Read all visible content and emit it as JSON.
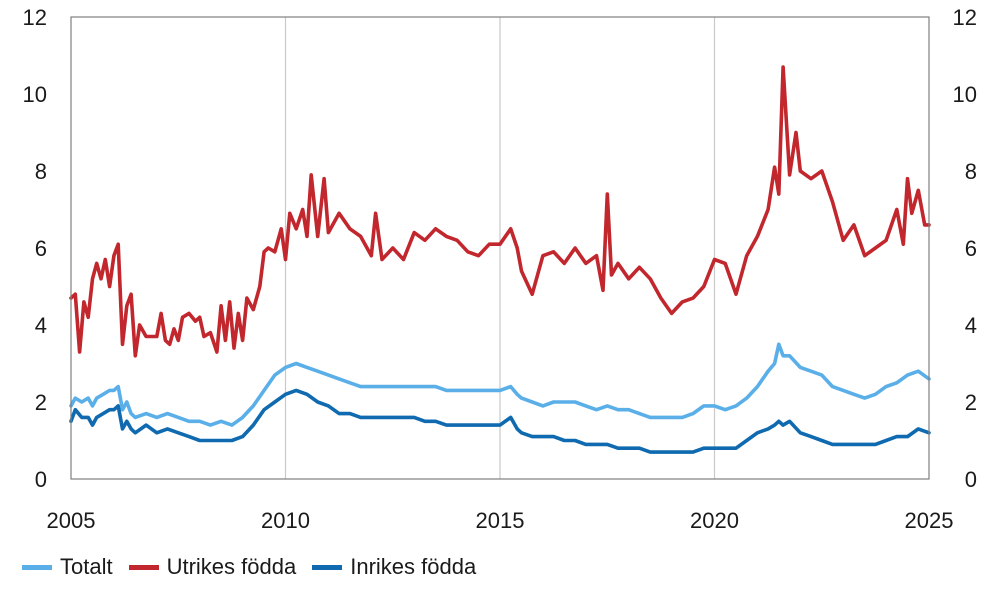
{
  "chart_data": {
    "type": "line",
    "xlim": [
      2005,
      2025
    ],
    "ylim": [
      0,
      12
    ],
    "x_ticks": [
      "2005",
      "2010",
      "2015",
      "2020",
      "2025"
    ],
    "y_ticks_left": [
      "0",
      "2",
      "4",
      "6",
      "8",
      "10",
      "12"
    ],
    "y_ticks_right": [
      "0",
      "2",
      "4",
      "6",
      "8",
      "10",
      "12"
    ],
    "grid": "vertical",
    "legend_position": "bottom",
    "series": [
      {
        "name": "Totalt",
        "color": "#5aafe8",
        "points": [
          [
            2005.0,
            1.9
          ],
          [
            2005.1,
            2.1
          ],
          [
            2005.25,
            2.0
          ],
          [
            2005.4,
            2.1
          ],
          [
            2005.5,
            1.9
          ],
          [
            2005.6,
            2.1
          ],
          [
            2005.75,
            2.2
          ],
          [
            2005.9,
            2.3
          ],
          [
            2006.0,
            2.3
          ],
          [
            2006.1,
            2.4
          ],
          [
            2006.2,
            1.8
          ],
          [
            2006.3,
            2.0
          ],
          [
            2006.4,
            1.7
          ],
          [
            2006.5,
            1.6
          ],
          [
            2006.75,
            1.7
          ],
          [
            2007.0,
            1.6
          ],
          [
            2007.25,
            1.7
          ],
          [
            2007.5,
            1.6
          ],
          [
            2007.75,
            1.5
          ],
          [
            2008.0,
            1.5
          ],
          [
            2008.25,
            1.4
          ],
          [
            2008.5,
            1.5
          ],
          [
            2008.75,
            1.4
          ],
          [
            2009.0,
            1.6
          ],
          [
            2009.25,
            1.9
          ],
          [
            2009.5,
            2.3
          ],
          [
            2009.75,
            2.7
          ],
          [
            2010.0,
            2.9
          ],
          [
            2010.25,
            3.0
          ],
          [
            2010.5,
            2.9
          ],
          [
            2010.75,
            2.8
          ],
          [
            2011.0,
            2.7
          ],
          [
            2011.25,
            2.6
          ],
          [
            2011.5,
            2.5
          ],
          [
            2011.75,
            2.4
          ],
          [
            2012.0,
            2.4
          ],
          [
            2012.25,
            2.4
          ],
          [
            2012.5,
            2.4
          ],
          [
            2012.75,
            2.4
          ],
          [
            2013.0,
            2.4
          ],
          [
            2013.25,
            2.4
          ],
          [
            2013.5,
            2.4
          ],
          [
            2013.75,
            2.3
          ],
          [
            2014.0,
            2.3
          ],
          [
            2014.25,
            2.3
          ],
          [
            2014.5,
            2.3
          ],
          [
            2014.75,
            2.3
          ],
          [
            2015.0,
            2.3
          ],
          [
            2015.25,
            2.4
          ],
          [
            2015.4,
            2.2
          ],
          [
            2015.5,
            2.1
          ],
          [
            2015.75,
            2.0
          ],
          [
            2016.0,
            1.9
          ],
          [
            2016.25,
            2.0
          ],
          [
            2016.5,
            2.0
          ],
          [
            2016.75,
            2.0
          ],
          [
            2017.0,
            1.9
          ],
          [
            2017.25,
            1.8
          ],
          [
            2017.5,
            1.9
          ],
          [
            2017.75,
            1.8
          ],
          [
            2018.0,
            1.8
          ],
          [
            2018.25,
            1.7
          ],
          [
            2018.5,
            1.6
          ],
          [
            2018.75,
            1.6
          ],
          [
            2019.0,
            1.6
          ],
          [
            2019.25,
            1.6
          ],
          [
            2019.5,
            1.7
          ],
          [
            2019.75,
            1.9
          ],
          [
            2020.0,
            1.9
          ],
          [
            2020.25,
            1.8
          ],
          [
            2020.5,
            1.9
          ],
          [
            2020.75,
            2.1
          ],
          [
            2021.0,
            2.4
          ],
          [
            2021.25,
            2.8
          ],
          [
            2021.4,
            3.0
          ],
          [
            2021.5,
            3.5
          ],
          [
            2021.6,
            3.2
          ],
          [
            2021.75,
            3.2
          ],
          [
            2022.0,
            2.9
          ],
          [
            2022.25,
            2.8
          ],
          [
            2022.5,
            2.7
          ],
          [
            2022.75,
            2.4
          ],
          [
            2023.0,
            2.3
          ],
          [
            2023.25,
            2.2
          ],
          [
            2023.5,
            2.1
          ],
          [
            2023.75,
            2.2
          ],
          [
            2024.0,
            2.4
          ],
          [
            2024.25,
            2.5
          ],
          [
            2024.5,
            2.7
          ],
          [
            2024.75,
            2.8
          ],
          [
            2025.0,
            2.6
          ]
        ]
      },
      {
        "name": "Utrikes födda",
        "color": "#c1272d",
        "points": [
          [
            2005.0,
            4.7
          ],
          [
            2005.1,
            4.8
          ],
          [
            2005.2,
            3.3
          ],
          [
            2005.3,
            4.6
          ],
          [
            2005.4,
            4.2
          ],
          [
            2005.5,
            5.2
          ],
          [
            2005.6,
            5.6
          ],
          [
            2005.7,
            5.2
          ],
          [
            2005.8,
            5.7
          ],
          [
            2005.9,
            5.0
          ],
          [
            2006.0,
            5.8
          ],
          [
            2006.1,
            6.1
          ],
          [
            2006.2,
            3.5
          ],
          [
            2006.3,
            4.5
          ],
          [
            2006.4,
            4.8
          ],
          [
            2006.5,
            3.2
          ],
          [
            2006.6,
            4.0
          ],
          [
            2006.75,
            3.7
          ],
          [
            2007.0,
            3.7
          ],
          [
            2007.1,
            4.3
          ],
          [
            2007.2,
            3.6
          ],
          [
            2007.3,
            3.5
          ],
          [
            2007.4,
            3.9
          ],
          [
            2007.5,
            3.6
          ],
          [
            2007.6,
            4.2
          ],
          [
            2007.75,
            4.3
          ],
          [
            2007.9,
            4.1
          ],
          [
            2008.0,
            4.2
          ],
          [
            2008.1,
            3.7
          ],
          [
            2008.25,
            3.8
          ],
          [
            2008.4,
            3.3
          ],
          [
            2008.5,
            4.5
          ],
          [
            2008.6,
            3.6
          ],
          [
            2008.7,
            4.6
          ],
          [
            2008.8,
            3.4
          ],
          [
            2008.9,
            4.3
          ],
          [
            2009.0,
            3.6
          ],
          [
            2009.1,
            4.7
          ],
          [
            2009.25,
            4.4
          ],
          [
            2009.4,
            5.0
          ],
          [
            2009.5,
            5.9
          ],
          [
            2009.6,
            6.0
          ],
          [
            2009.75,
            5.9
          ],
          [
            2009.9,
            6.5
          ],
          [
            2010.0,
            5.7
          ],
          [
            2010.1,
            6.9
          ],
          [
            2010.25,
            6.5
          ],
          [
            2010.4,
            7.0
          ],
          [
            2010.5,
            6.3
          ],
          [
            2010.6,
            7.9
          ],
          [
            2010.75,
            6.3
          ],
          [
            2010.9,
            7.8
          ],
          [
            2011.0,
            6.4
          ],
          [
            2011.25,
            6.9
          ],
          [
            2011.5,
            6.5
          ],
          [
            2011.75,
            6.3
          ],
          [
            2012.0,
            5.8
          ],
          [
            2012.1,
            6.9
          ],
          [
            2012.25,
            5.7
          ],
          [
            2012.5,
            6.0
          ],
          [
            2012.75,
            5.7
          ],
          [
            2013.0,
            6.4
          ],
          [
            2013.25,
            6.2
          ],
          [
            2013.5,
            6.5
          ],
          [
            2013.75,
            6.3
          ],
          [
            2014.0,
            6.2
          ],
          [
            2014.25,
            5.9
          ],
          [
            2014.5,
            5.8
          ],
          [
            2014.75,
            6.1
          ],
          [
            2015.0,
            6.1
          ],
          [
            2015.25,
            6.5
          ],
          [
            2015.4,
            6.0
          ],
          [
            2015.5,
            5.4
          ],
          [
            2015.75,
            4.8
          ],
          [
            2016.0,
            5.8
          ],
          [
            2016.25,
            5.9
          ],
          [
            2016.5,
            5.6
          ],
          [
            2016.75,
            6.0
          ],
          [
            2017.0,
            5.6
          ],
          [
            2017.25,
            5.8
          ],
          [
            2017.4,
            4.9
          ],
          [
            2017.5,
            7.4
          ],
          [
            2017.6,
            5.3
          ],
          [
            2017.75,
            5.6
          ],
          [
            2018.0,
            5.2
          ],
          [
            2018.25,
            5.5
          ],
          [
            2018.5,
            5.2
          ],
          [
            2018.75,
            4.7
          ],
          [
            2019.0,
            4.3
          ],
          [
            2019.25,
            4.6
          ],
          [
            2019.5,
            4.7
          ],
          [
            2019.75,
            5.0
          ],
          [
            2020.0,
            5.7
          ],
          [
            2020.25,
            5.6
          ],
          [
            2020.5,
            4.8
          ],
          [
            2020.75,
            5.8
          ],
          [
            2021.0,
            6.3
          ],
          [
            2021.25,
            7.0
          ],
          [
            2021.4,
            8.1
          ],
          [
            2021.5,
            7.4
          ],
          [
            2021.6,
            10.7
          ],
          [
            2021.75,
            7.9
          ],
          [
            2021.9,
            9.0
          ],
          [
            2022.0,
            8.0
          ],
          [
            2022.25,
            7.8
          ],
          [
            2022.5,
            8.0
          ],
          [
            2022.75,
            7.2
          ],
          [
            2023.0,
            6.2
          ],
          [
            2023.25,
            6.6
          ],
          [
            2023.5,
            5.8
          ],
          [
            2023.75,
            6.0
          ],
          [
            2024.0,
            6.2
          ],
          [
            2024.25,
            7.0
          ],
          [
            2024.4,
            6.1
          ],
          [
            2024.5,
            7.8
          ],
          [
            2024.6,
            6.9
          ],
          [
            2024.75,
            7.5
          ],
          [
            2024.9,
            6.6
          ],
          [
            2025.0,
            6.6
          ]
        ]
      },
      {
        "name": "Inrikes födda",
        "color": "#0f6ab0",
        "points": [
          [
            2005.0,
            1.5
          ],
          [
            2005.1,
            1.8
          ],
          [
            2005.25,
            1.6
          ],
          [
            2005.4,
            1.6
          ],
          [
            2005.5,
            1.4
          ],
          [
            2005.6,
            1.6
          ],
          [
            2005.75,
            1.7
          ],
          [
            2005.9,
            1.8
          ],
          [
            2006.0,
            1.8
          ],
          [
            2006.1,
            1.9
          ],
          [
            2006.2,
            1.3
          ],
          [
            2006.3,
            1.5
          ],
          [
            2006.4,
            1.3
          ],
          [
            2006.5,
            1.2
          ],
          [
            2006.75,
            1.4
          ],
          [
            2007.0,
            1.2
          ],
          [
            2007.25,
            1.3
          ],
          [
            2007.5,
            1.2
          ],
          [
            2007.75,
            1.1
          ],
          [
            2008.0,
            1.0
          ],
          [
            2008.25,
            1.0
          ],
          [
            2008.5,
            1.0
          ],
          [
            2008.75,
            1.0
          ],
          [
            2009.0,
            1.1
          ],
          [
            2009.25,
            1.4
          ],
          [
            2009.5,
            1.8
          ],
          [
            2009.75,
            2.0
          ],
          [
            2010.0,
            2.2
          ],
          [
            2010.25,
            2.3
          ],
          [
            2010.5,
            2.2
          ],
          [
            2010.75,
            2.0
          ],
          [
            2011.0,
            1.9
          ],
          [
            2011.25,
            1.7
          ],
          [
            2011.5,
            1.7
          ],
          [
            2011.75,
            1.6
          ],
          [
            2012.0,
            1.6
          ],
          [
            2012.25,
            1.6
          ],
          [
            2012.5,
            1.6
          ],
          [
            2012.75,
            1.6
          ],
          [
            2013.0,
            1.6
          ],
          [
            2013.25,
            1.5
          ],
          [
            2013.5,
            1.5
          ],
          [
            2013.75,
            1.4
          ],
          [
            2014.0,
            1.4
          ],
          [
            2014.25,
            1.4
          ],
          [
            2014.5,
            1.4
          ],
          [
            2014.75,
            1.4
          ],
          [
            2015.0,
            1.4
          ],
          [
            2015.25,
            1.6
          ],
          [
            2015.4,
            1.3
          ],
          [
            2015.5,
            1.2
          ],
          [
            2015.75,
            1.1
          ],
          [
            2016.0,
            1.1
          ],
          [
            2016.25,
            1.1
          ],
          [
            2016.5,
            1.0
          ],
          [
            2016.75,
            1.0
          ],
          [
            2017.0,
            0.9
          ],
          [
            2017.25,
            0.9
          ],
          [
            2017.5,
            0.9
          ],
          [
            2017.75,
            0.8
          ],
          [
            2018.0,
            0.8
          ],
          [
            2018.25,
            0.8
          ],
          [
            2018.5,
            0.7
          ],
          [
            2018.75,
            0.7
          ],
          [
            2019.0,
            0.7
          ],
          [
            2019.25,
            0.7
          ],
          [
            2019.5,
            0.7
          ],
          [
            2019.75,
            0.8
          ],
          [
            2020.0,
            0.8
          ],
          [
            2020.25,
            0.8
          ],
          [
            2020.5,
            0.8
          ],
          [
            2020.75,
            1.0
          ],
          [
            2021.0,
            1.2
          ],
          [
            2021.25,
            1.3
          ],
          [
            2021.4,
            1.4
          ],
          [
            2021.5,
            1.5
          ],
          [
            2021.6,
            1.4
          ],
          [
            2021.75,
            1.5
          ],
          [
            2022.0,
            1.2
          ],
          [
            2022.25,
            1.1
          ],
          [
            2022.5,
            1.0
          ],
          [
            2022.75,
            0.9
          ],
          [
            2023.0,
            0.9
          ],
          [
            2023.25,
            0.9
          ],
          [
            2023.5,
            0.9
          ],
          [
            2023.75,
            0.9
          ],
          [
            2024.0,
            1.0
          ],
          [
            2024.25,
            1.1
          ],
          [
            2024.5,
            1.1
          ],
          [
            2024.75,
            1.3
          ],
          [
            2025.0,
            1.2
          ]
        ]
      }
    ]
  }
}
